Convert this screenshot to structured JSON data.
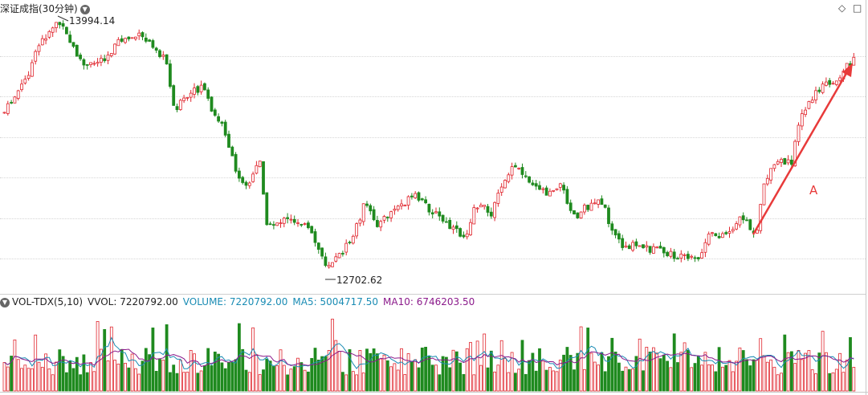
{
  "header": {
    "title": "深证成指(30分钟)",
    "title_dropdown_icon": "chevron-down-icon",
    "tool_icons": [
      "diamond-icon",
      "square-icon"
    ]
  },
  "chart_annotations": {
    "high_label": "13994.14",
    "low_label": "12702.62",
    "arrow_label": "A"
  },
  "volume_panel": {
    "dropdown_icon": "chevron-down-icon",
    "indicator_name": "VOL-TDX(5,10)",
    "vvol": "VVOL: 7220792.00",
    "volume": "VOLUME: 7220792.00",
    "ma5": "MA5: 5004717.50",
    "ma10": "MA10: 6746203.50"
  },
  "colors": {
    "up": "#e0262e",
    "down": "#1f8a1f",
    "ma5_line": "#1a8cb4",
    "ma10_line": "#8b1a8b",
    "arrow": "#e83a3a"
  },
  "chart_data": {
    "type": "candlestick",
    "title": "深证成指(30分钟)",
    "interval": "30 minutes",
    "marked_high": 13994.14,
    "marked_low": 12702.62,
    "y_range_approx": [
      12650,
      14050
    ],
    "close_path_approx": [
      13550,
      13620,
      13800,
      13994,
      13850,
      13780,
      13800,
      13850,
      13820,
      13600,
      13650,
      13700,
      13500,
      13250,
      13150,
      13050,
      12800,
      12900,
      12950,
      12702,
      12800,
      13000,
      12950,
      13100,
      13050,
      12950,
      12900,
      13150,
      13250,
      13300,
      13250,
      13200,
      12950,
      12850,
      12800,
      12790,
      12780,
      12800,
      12850,
      12900,
      12950,
      13250,
      13400,
      13500,
      13600,
      13700,
      13800,
      13880
    ],
    "volume_series": {
      "last_volume": 7220792.0,
      "ma5": 5004717.5,
      "ma10": 6746203.5
    }
  }
}
